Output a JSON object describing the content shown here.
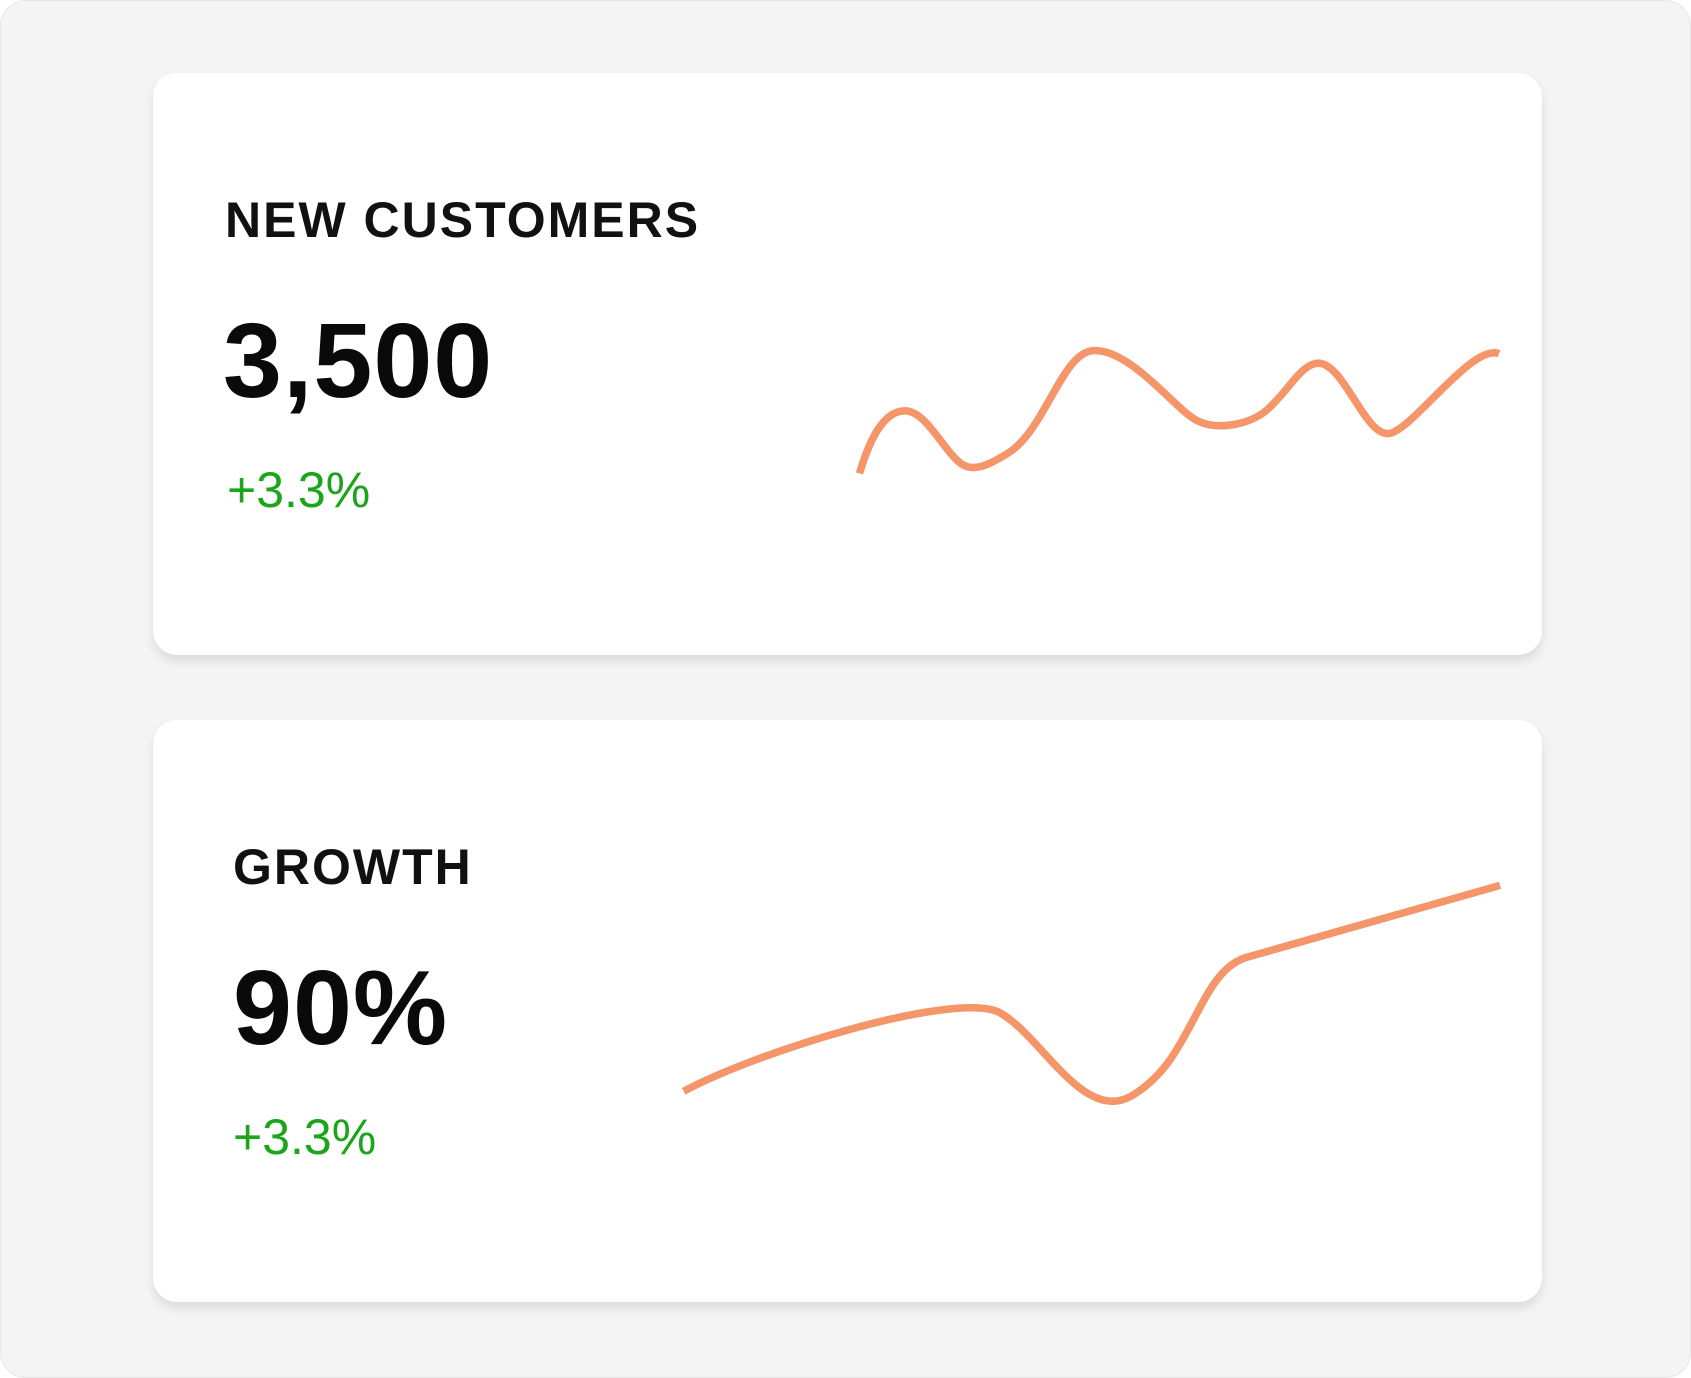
{
  "cards": [
    {
      "title": "NEW CUSTOMERS",
      "value": "3,500",
      "change": "+3.3%"
    },
    {
      "title": "GROWTH",
      "value": "90%",
      "change": "+3.3%"
    }
  ]
}
